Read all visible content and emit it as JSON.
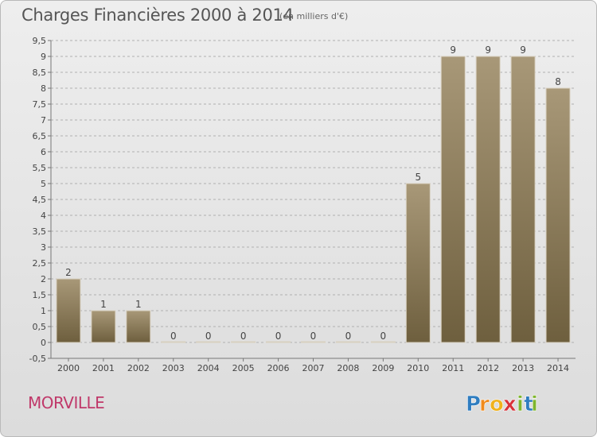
{
  "title": "Charges Financières 2000 à 2014",
  "subtitle": "(en milliers d'€)",
  "commune": "MORVILLE",
  "logo": {
    "letters": [
      "P",
      "r",
      "o",
      "x",
      "i",
      "t",
      "i"
    ],
    "colors": [
      "#2f7dc0",
      "#f08a1c",
      "#f0b21c",
      "#d8323a",
      "#7fb52e",
      "#2f7dc0",
      "#7fb52e"
    ]
  },
  "colors": {
    "bar_top": "#a89878",
    "bar_bottom": "#6e5f3e",
    "grid": "#b0b0b0"
  },
  "chart_data": {
    "type": "bar",
    "categories": [
      "2000",
      "2001",
      "2002",
      "2003",
      "2004",
      "2005",
      "2006",
      "2007",
      "2008",
      "2009",
      "2010",
      "2011",
      "2012",
      "2013",
      "2014"
    ],
    "values": [
      2,
      1,
      1,
      0,
      0,
      0,
      0,
      0,
      0,
      0,
      5,
      9,
      9,
      9,
      8
    ],
    "data_labels": [
      "2",
      "1",
      "1",
      "0",
      "0",
      "0",
      "0",
      "0",
      "0",
      "0",
      "5",
      "9",
      "9",
      "9",
      "8"
    ],
    "yticks": [
      "-0,5",
      "0",
      "0,5",
      "1",
      "1,5",
      "2",
      "2,5",
      "3",
      "3,5",
      "4",
      "4,5",
      "5",
      "5,5",
      "6",
      "6,5",
      "7",
      "7,5",
      "8",
      "8,5",
      "9",
      "9,5"
    ],
    "ylim": [
      -0.5,
      9.5
    ],
    "grid": true,
    "legend": "none"
  }
}
